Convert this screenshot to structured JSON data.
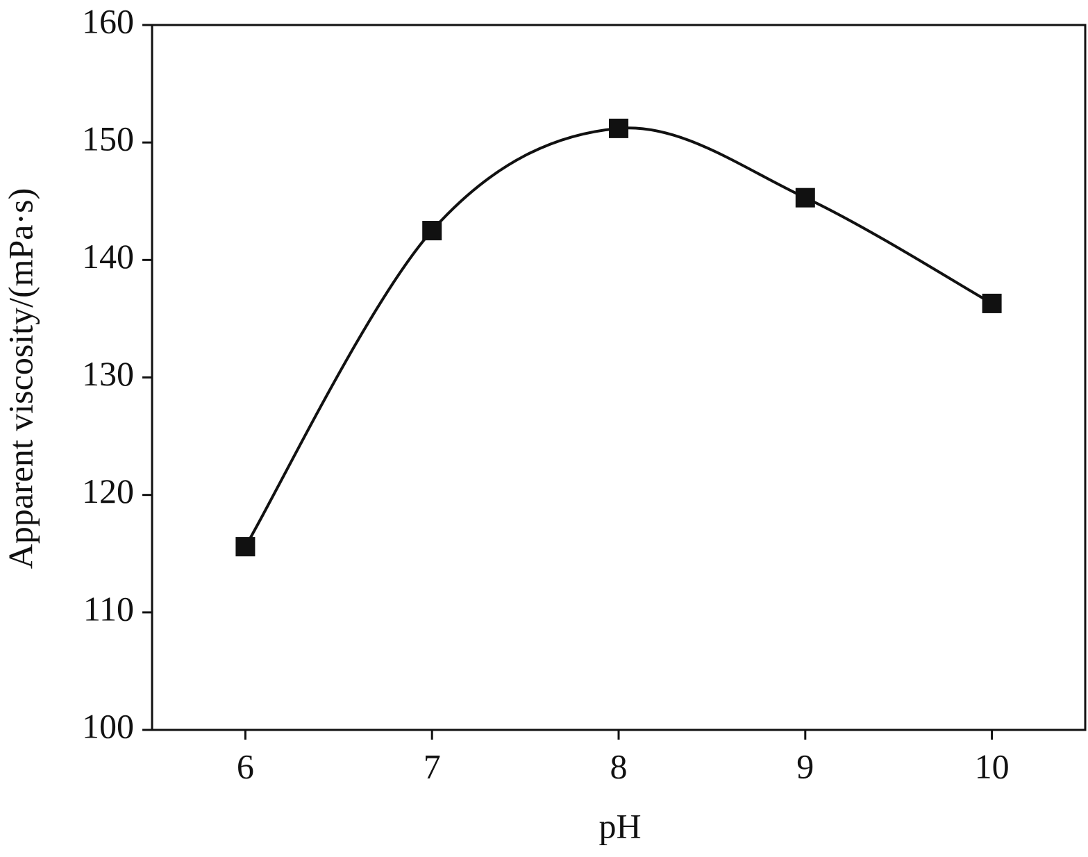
{
  "chart_data": {
    "type": "line",
    "xlabel": "pH",
    "ylabel": "Apparent viscosity/(mPa·s)",
    "x": [
      6,
      7,
      8,
      9,
      10
    ],
    "series": [
      {
        "color": "#111111",
        "values": [
          115.6,
          142.5,
          151.2,
          145.3,
          136.3
        ]
      }
    ],
    "xlim": [
      5.5,
      10.5
    ],
    "xticks": [
      6,
      7,
      8,
      9,
      10
    ],
    "ylim": [
      100,
      160
    ],
    "yticks": [
      100,
      110,
      120,
      130,
      140,
      150,
      160
    ],
    "grid": false
  }
}
